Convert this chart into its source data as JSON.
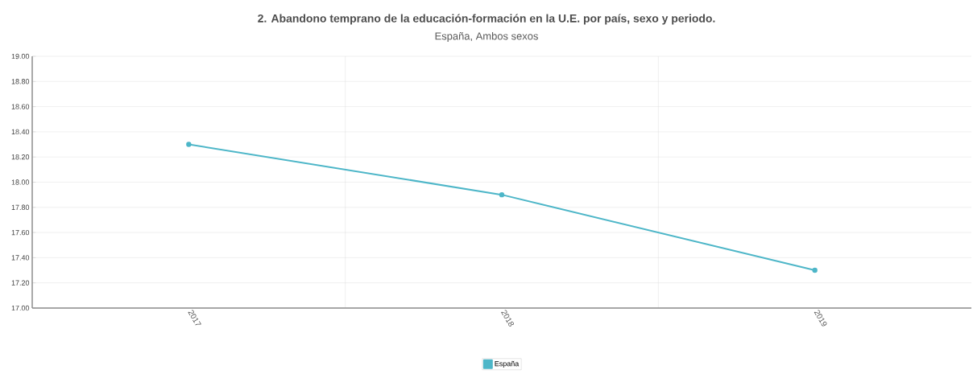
{
  "chart_data": {
    "type": "line",
    "title": "2. Abandono temprano de la educación-formación en la U.E. por país,  sexo y periodo.",
    "subtitle": "España, Ambos sexos",
    "categories": [
      "2017",
      "2018",
      "2019"
    ],
    "series": [
      {
        "name": "España",
        "color": "#4db6c8",
        "values": [
          18.3,
          17.9,
          17.3
        ]
      }
    ],
    "ylim": [
      17,
      19
    ],
    "yticks": [
      {
        "value": 17,
        "label": "17.00"
      },
      {
        "value": 17.2,
        "label": "17.20"
      },
      {
        "value": 17.4,
        "label": "17.40"
      },
      {
        "value": 17.6,
        "label": "17.60"
      },
      {
        "value": 17.8,
        "label": "17.80"
      },
      {
        "value": 18,
        "label": "18.00"
      },
      {
        "value": 18.2,
        "label": "18.20"
      },
      {
        "value": 18.4,
        "label": "18.40"
      },
      {
        "value": 18.6,
        "label": "18.60"
      },
      {
        "value": 18.8,
        "label": "18.80"
      },
      {
        "value": 19,
        "label": "19.00"
      }
    ],
    "grid": true,
    "legend": "bottom",
    "marker": "circle",
    "line_style": "solid"
  }
}
